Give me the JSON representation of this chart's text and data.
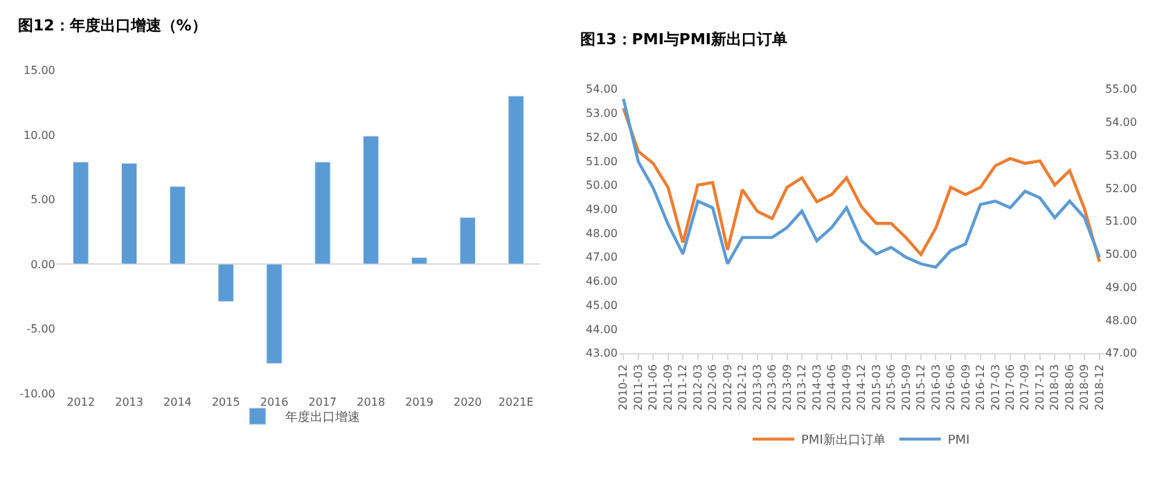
{
  "chart_data": [
    {
      "type": "bar",
      "title": "图12：年度出口增速（%）",
      "categories": [
        "2012",
        "2013",
        "2014",
        "2015",
        "2016",
        "2017",
        "2018",
        "2019",
        "2020",
        "2021E"
      ],
      "series": [
        {
          "name": "年度出口增速",
          "color": "#5b9bd5",
          "values": [
            7.9,
            7.8,
            6.0,
            -2.9,
            -7.7,
            7.9,
            9.9,
            0.5,
            3.6,
            13.0
          ]
        }
      ],
      "ylim": [
        -10,
        15
      ],
      "yticks": [
        {
          "value": -10,
          "label": "-10.00"
        },
        {
          "value": -5,
          "label": "-5.00"
        },
        {
          "value": 0,
          "label": "0.00"
        },
        {
          "value": 5,
          "label": "5.00"
        },
        {
          "value": 10,
          "label": "10.00"
        },
        {
          "value": 15,
          "label": "15.00"
        }
      ],
      "legend": "bottom"
    },
    {
      "type": "line",
      "title": "图13：PMI与PMI新出口订单",
      "categories": [
        "2010-12",
        "2011-03",
        "2011-06",
        "2011-09",
        "2011-12",
        "2012-03",
        "2012-06",
        "2012-09",
        "2012-12",
        "2013-03",
        "2013-06",
        "2013-09",
        "2013-12",
        "2014-03",
        "2014-06",
        "2014-09",
        "2014-12",
        "2015-03",
        "2015-06",
        "2015-09",
        "2015-12",
        "2016-03",
        "2016-06",
        "2016-09",
        "2016-12",
        "2017-03",
        "2017-06",
        "2017-09",
        "2017-12",
        "2018-03",
        "2018-06",
        "2018-09",
        "2018-12"
      ],
      "series": [
        {
          "name": "PMI新出口订单",
          "color": "#ed7d31",
          "values": [
            53.2,
            51.4,
            50.9,
            49.9,
            47.6,
            50.0,
            50.1,
            47.3,
            49.8,
            48.9,
            48.6,
            49.9,
            50.3,
            49.3,
            49.6,
            50.3,
            49.1,
            48.4,
            48.4,
            47.8,
            47.1,
            48.2,
            49.9,
            49.6,
            49.9,
            50.8,
            51.1,
            50.9,
            51.0,
            50.0,
            50.6,
            49.0,
            46.8
          ]
        },
        {
          "name": "PMI",
          "color": "#5b9bd5",
          "axis": "y2",
          "values": [
            54.7,
            52.8,
            52.0,
            50.9,
            50.0,
            51.6,
            51.4,
            49.7,
            50.5,
            50.5,
            50.5,
            50.8,
            51.3,
            50.4,
            50.8,
            51.4,
            50.4,
            50.0,
            50.2,
            49.9,
            49.7,
            49.6,
            50.1,
            50.3,
            51.5,
            51.6,
            51.4,
            51.9,
            51.7,
            51.1,
            51.6,
            51.1,
            49.9
          ]
        }
      ],
      "ylim": [
        43,
        54
      ],
      "yticks": [
        {
          "value": 43,
          "label": "43.00"
        },
        {
          "value": 44,
          "label": "44.00"
        },
        {
          "value": 45,
          "label": "45.00"
        },
        {
          "value": 46,
          "label": "46.00"
        },
        {
          "value": 47,
          "label": "47.00"
        },
        {
          "value": 48,
          "label": "48.00"
        },
        {
          "value": 49,
          "label": "49.00"
        },
        {
          "value": 50,
          "label": "50.00"
        },
        {
          "value": 51,
          "label": "51.00"
        },
        {
          "value": 52,
          "label": "52.00"
        },
        {
          "value": 53,
          "label": "53.00"
        },
        {
          "value": 54,
          "label": "54.00"
        }
      ],
      "y2lim": [
        47,
        55
      ],
      "y2ticks": [
        {
          "value": 47,
          "label": "47.00"
        },
        {
          "value": 48,
          "label": "48.00"
        },
        {
          "value": 49,
          "label": "49.00"
        },
        {
          "value": 50,
          "label": "50.00"
        },
        {
          "value": 51,
          "label": "51.00"
        },
        {
          "value": 52,
          "label": "52.00"
        },
        {
          "value": 53,
          "label": "53.00"
        },
        {
          "value": 54,
          "label": "54.00"
        },
        {
          "value": 55,
          "label": "55.00"
        }
      ],
      "legend": "bottom"
    }
  ]
}
